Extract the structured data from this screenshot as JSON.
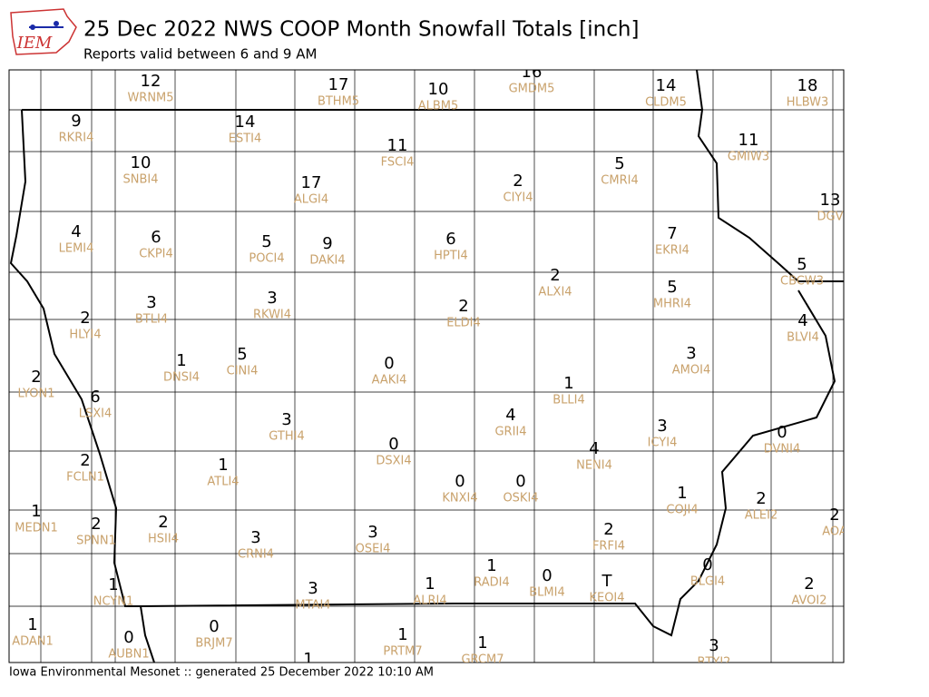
{
  "header": {
    "logo": "IEM",
    "title": "25 Dec 2022 NWS COOP Month Snowfall Totals [inch]",
    "subtitle": "Reports valid between 6 and 9 AM"
  },
  "footer": "Iowa Environmental Mesonet :: generated 25 December 2022 10:10 AM",
  "stations": [
    {
      "value": 12,
      "id": "WRNM5"
    },
    {
      "value": 17,
      "id": "BTHM5"
    },
    {
      "value": 10,
      "id": "ALBM5"
    },
    {
      "value": 16,
      "id": "GMDM5"
    },
    {
      "value": 14,
      "id": "CLDM5"
    },
    {
      "value": 18,
      "id": "HLBW3"
    },
    {
      "value": 9,
      "id": "RKRI4"
    },
    {
      "value": 14,
      "id": "ESTI4"
    },
    {
      "value": 11,
      "id": "FSCI4"
    },
    {
      "value": 11,
      "id": "GMIW3"
    },
    {
      "value": 10,
      "id": "SNBI4"
    },
    {
      "value": 17,
      "id": "ALGI4"
    },
    {
      "value": 2,
      "id": "CIYI4"
    },
    {
      "value": 5,
      "id": "CMRI4"
    },
    {
      "value": 13,
      "id": "DGV"
    },
    {
      "value": 4,
      "id": "LEMI4"
    },
    {
      "value": 6,
      "id": "CKPI4"
    },
    {
      "value": 5,
      "id": "POCI4"
    },
    {
      "value": 9,
      "id": "DAKI4"
    },
    {
      "value": 6,
      "id": "HPTI4"
    },
    {
      "value": 7,
      "id": "EKRI4"
    },
    {
      "value": 2,
      "id": "ALXI4"
    },
    {
      "value": 5,
      "id": "MHRI4"
    },
    {
      "value": 5,
      "id": "CBCW3"
    },
    {
      "value": 3,
      "id": "BTLI4"
    },
    {
      "value": 3,
      "id": "RKWI4"
    },
    {
      "value": 2,
      "id": "ELDI4"
    },
    {
      "value": 2,
      "id": "HLYI4"
    },
    {
      "value": 4,
      "id": "BLVI4"
    },
    {
      "value": 3,
      "id": "AMOI4"
    },
    {
      "value": 1,
      "id": "DNSI4"
    },
    {
      "value": 5,
      "id": "CINI4"
    },
    {
      "value": 0,
      "id": "AAKI4"
    },
    {
      "value": 2,
      "id": "LYON1"
    },
    {
      "value": 1,
      "id": "BLLI4"
    },
    {
      "value": 6,
      "id": "LSXI4"
    },
    {
      "value": 4,
      "id": "GRII4"
    },
    {
      "value": 3,
      "id": "GTHI4"
    },
    {
      "value": 3,
      "id": "ICYI4"
    },
    {
      "value": 0,
      "id": "DVNI4"
    },
    {
      "value": 0,
      "id": "DSXI4"
    },
    {
      "value": 4,
      "id": "NENI4"
    },
    {
      "value": 2,
      "id": "FCLN1"
    },
    {
      "value": 1,
      "id": "ATLI4"
    },
    {
      "value": 0,
      "id": "KNXI4"
    },
    {
      "value": 0,
      "id": "OSKI4"
    },
    {
      "value": 1,
      "id": "COJI4"
    },
    {
      "value": 2,
      "id": "ALEI2"
    },
    {
      "value": 1,
      "id": "MEDN1"
    },
    {
      "value": 2,
      "id": "SPNN1"
    },
    {
      "value": 2,
      "id": "HSII4"
    },
    {
      "value": 3,
      "id": "CRNI4"
    },
    {
      "value": 3,
      "id": "OSEI4"
    },
    {
      "value": 2,
      "id": "FRFI4"
    },
    {
      "value": 2,
      "id": "AOA"
    },
    {
      "value": 1,
      "id": "RADI4"
    },
    {
      "value": 0,
      "id": "BLMI4"
    },
    {
      "value": "T",
      "id": "KEOI4"
    },
    {
      "value": 0,
      "id": "BLGI4"
    },
    {
      "value": 1,
      "id": "NCYN1"
    },
    {
      "value": 3,
      "id": "MTAI4"
    },
    {
      "value": 1,
      "id": "ALRI4"
    },
    {
      "value": 2,
      "id": "AVOI2"
    },
    {
      "value": 1,
      "id": "ADAN1"
    },
    {
      "value": 0,
      "id": "BRJM7"
    },
    {
      "value": 0,
      "id": "AUBN1"
    },
    {
      "value": 1,
      "id": "PRTM7"
    },
    {
      "value": 1,
      "id": "GRCM7"
    },
    {
      "value": 3,
      "id": "BTYI2"
    },
    {
      "value": 1
    }
  ]
}
